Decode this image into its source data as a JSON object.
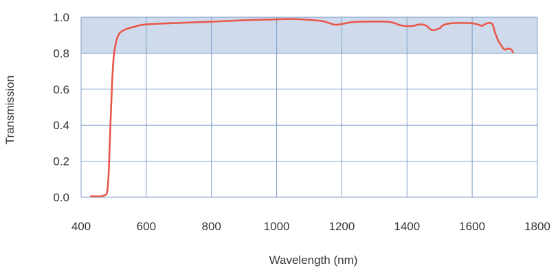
{
  "chart_data": {
    "type": "line",
    "xlabel": "Wavelength (nm)",
    "ylabel": "Transmission",
    "xlim": [
      400,
      1800
    ],
    "ylim": [
      0,
      1.0
    ],
    "xticks": [
      400,
      600,
      800,
      1000,
      1200,
      1400,
      1600,
      1800
    ],
    "yticks": [
      0.0,
      0.2,
      0.4,
      0.6,
      0.8,
      1.0
    ],
    "xtick_labels": [
      "400",
      "600",
      "800",
      "1000",
      "1200",
      "1400",
      "1600",
      "1800"
    ],
    "ytick_labels": [
      "0.0",
      "0.2",
      "0.4",
      "0.6",
      "0.8",
      "1.0"
    ],
    "grid": true,
    "shaded_band": {
      "y_from": 0.8,
      "y_to": 1.0,
      "color": "#cfdbec"
    },
    "colors": {
      "line": "#e8584a",
      "grid": "#7f9ec6",
      "band": "#cfdbec"
    },
    "series": [
      {
        "x": [
          430,
          460,
          470,
          480,
          485,
          490,
          495,
          500,
          505,
          510,
          520,
          540,
          560,
          600,
          700,
          800,
          900,
          1000,
          1050,
          1100,
          1140,
          1160,
          1180,
          1200,
          1230,
          1260,
          1300,
          1340,
          1360,
          1380,
          1400,
          1420,
          1440,
          1460,
          1470,
          1480,
          1500,
          1510,
          1530,
          1560,
          1600,
          1620,
          1630,
          1640,
          1650,
          1660,
          1665,
          1670,
          1680,
          1690,
          1700,
          1710,
          1720,
          1725
        ],
        "y": [
          0.005,
          0.005,
          0.01,
          0.03,
          0.15,
          0.4,
          0.63,
          0.78,
          0.84,
          0.88,
          0.915,
          0.935,
          0.945,
          0.96,
          0.968,
          0.975,
          0.983,
          0.988,
          0.99,
          0.985,
          0.978,
          0.968,
          0.958,
          0.962,
          0.972,
          0.975,
          0.976,
          0.975,
          0.968,
          0.955,
          0.95,
          0.952,
          0.96,
          0.952,
          0.935,
          0.928,
          0.938,
          0.955,
          0.965,
          0.968,
          0.966,
          0.958,
          0.952,
          0.962,
          0.968,
          0.965,
          0.948,
          0.915,
          0.87,
          0.84,
          0.82,
          0.825,
          0.82,
          0.805
        ]
      }
    ]
  }
}
